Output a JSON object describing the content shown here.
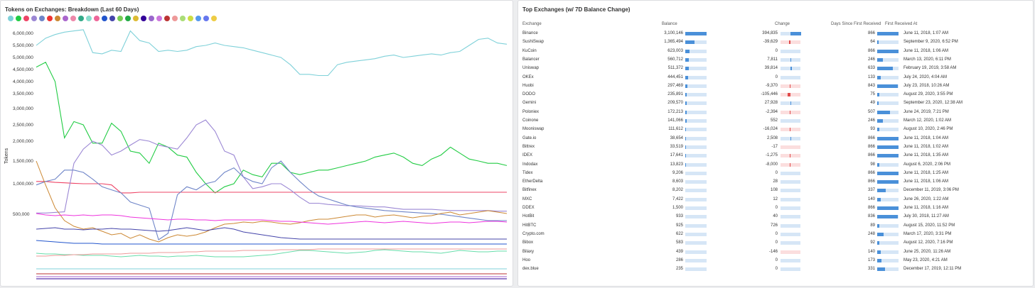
{
  "left_title": "Tokens on Exchanges: Breakdown (Last 60 Days)",
  "right_title": "Top Exchanges (w/ 7D Balance Change)",
  "legend_colors": [
    "#7fd1d9",
    "#22cc44",
    "#ee4466",
    "#9b87d4",
    "#6f85c8",
    "#ee3333",
    "#cc8833",
    "#aa66cc",
    "#ee88aa",
    "#33aa88",
    "#88ddcc",
    "#ee6699",
    "#2255cc",
    "#4444aa",
    "#77cc55",
    "#22aa44",
    "#ddbb33",
    "#330099",
    "#9966cc",
    "#cc77dd",
    "#bb3333",
    "#ee9999",
    "#aadd77",
    "#ccdd44",
    "#5599ee",
    "#6677ee",
    "#eecc44"
  ],
  "chart_data": {
    "type": "line",
    "ylabel": "Tokens",
    "yticks": [
      "6,000,000",
      "5,500,000",
      "5,000,000",
      "4,500,000",
      "4,000,000",
      "3,500,000",
      "3,000,000",
      "2,500,000",
      "2,000,000",
      "1,500,000",
      "1,000,000",
      "500,000"
    ],
    "series": [
      {
        "color": "#7fd1d9",
        "values": [
          5500000,
          5800000,
          5950000,
          6050000,
          6100000,
          6150000,
          5200000,
          5150000,
          5300000,
          5250000,
          6100000,
          5700000,
          5600000,
          5250000,
          5300000,
          5250000,
          5300000,
          5450000,
          5500000,
          5600000,
          5500000,
          5450000,
          5400000,
          5300000,
          5200000,
          5100000,
          5000000,
          4700000,
          4300000,
          4300000,
          4250000,
          4250000,
          4700000,
          4800000,
          4850000,
          4900000,
          4950000,
          5050000,
          5100000,
          5000000,
          5050000,
          5100000,
          5150000,
          5100000,
          5200000,
          5250000,
          5500000,
          5750000,
          5800000,
          5600000,
          5550000
        ]
      },
      {
        "color": "#22cc44",
        "values": [
          4600000,
          4800000,
          4000000,
          2100000,
          2600000,
          2500000,
          1950000,
          1950000,
          2550000,
          2300000,
          1750000,
          1700000,
          1450000,
          1950000,
          1850000,
          1650000,
          1600000,
          1250000,
          1000000,
          850000,
          950000,
          1000000,
          1300000,
          1200000,
          1150000,
          1450000,
          1450000,
          1250000,
          1200000,
          1250000,
          1300000,
          1300000,
          1350000,
          1400000,
          1450000,
          1500000,
          1600000,
          1650000,
          1700000,
          1600000,
          1450000,
          1400000,
          1550000,
          1650000,
          1850000,
          1700000,
          1550000,
          1500000,
          1450000,
          1450000,
          1400000
        ]
      },
      {
        "color": "#ee4466",
        "values": [
          1050000,
          1050000,
          1030000,
          1020000,
          1010000,
          1000000,
          1000000,
          1000000,
          980000,
          850000,
          850000,
          860000,
          860000,
          860000,
          860000,
          860000,
          860000,
          860000,
          860000,
          860000,
          860000,
          860000,
          860000,
          860000,
          860000,
          860000,
          860000,
          860000,
          860000,
          860000,
          860000,
          860000,
          860000,
          860000,
          860000,
          860000,
          860000,
          860000,
          860000,
          860000,
          860000,
          860000,
          860000,
          860000,
          860000,
          860000,
          860000,
          860000,
          860000,
          860000,
          860000
        ]
      },
      {
        "color": "#9b87d4",
        "values": [
          520000,
          520000,
          530000,
          540000,
          1450000,
          1800000,
          2000000,
          1900000,
          1650000,
          1750000,
          1900000,
          2050000,
          2000000,
          1900000,
          1850000,
          1800000,
          2100000,
          2500000,
          2650000,
          2300000,
          1750000,
          1650000,
          1150000,
          920000,
          950000,
          1000000,
          1000000,
          900000,
          780000,
          680000,
          680000,
          660000,
          650000,
          640000,
          640000,
          630000,
          620000,
          620000,
          600000,
          580000,
          580000,
          580000,
          580000,
          570000,
          560000,
          560000,
          560000,
          560000,
          560000,
          550000,
          550000
        ]
      },
      {
        "color": "#6f85c8",
        "values": [
          980000,
          1050000,
          1100000,
          1300000,
          1300000,
          1250000,
          1100000,
          950000,
          900000,
          850000,
          700000,
          650000,
          600000,
          300000,
          350000,
          820000,
          950000,
          900000,
          1000000,
          1050000,
          1250000,
          1350000,
          1150000,
          1050000,
          1000000,
          1350000,
          1500000,
          1250000,
          1050000,
          900000,
          800000,
          750000,
          700000,
          650000,
          620000,
          600000,
          580000,
          560000,
          550000,
          540000,
          530000,
          520000,
          510000,
          500000,
          490000,
          480000,
          470000,
          460000,
          450000,
          450000,
          450000
        ]
      }
    ]
  },
  "table": {
    "headers": {
      "exchange": "Exchange",
      "balance": "Balance",
      "change": "Change",
      "days": "Days Since First Received",
      "first": "First Received At"
    },
    "rows": [
      {
        "exchange": "Binance",
        "balance": "3,100,146",
        "balance_frac": 1.0,
        "change": "394,835",
        "change_frac": 0.55,
        "change_neg": false,
        "days": "866",
        "days_frac": 1.0,
        "first": "June 11, 2018, 1:07 AM"
      },
      {
        "exchange": "SushiSwap",
        "balance": "1,365,494",
        "balance_frac": 0.44,
        "change": "-39,629",
        "change_frac": 0.06,
        "change_neg": true,
        "days": "64",
        "days_frac": 0.07,
        "first": "September 9, 2020, 6:52 PM"
      },
      {
        "exchange": "KuCoin",
        "balance": "623,003",
        "balance_frac": 0.2,
        "change": "0",
        "change_frac": 0,
        "change_neg": false,
        "days": "866",
        "days_frac": 1.0,
        "first": "June 11, 2018, 1:06 AM"
      },
      {
        "exchange": "Balancer",
        "balance": "560,712",
        "balance_frac": 0.18,
        "change": "7,811",
        "change_frac": 0.01,
        "change_neg": false,
        "days": "246",
        "days_frac": 0.28,
        "first": "March 13, 2020, 6:11 PM"
      },
      {
        "exchange": "Uniswap",
        "balance": "511,372",
        "balance_frac": 0.16,
        "change": "39,814",
        "change_frac": 0.06,
        "change_neg": false,
        "days": "633",
        "days_frac": 0.73,
        "first": "February 19, 2019, 3:58 AM"
      },
      {
        "exchange": "OKEx",
        "balance": "444,451",
        "balance_frac": 0.14,
        "change": "0",
        "change_frac": 0,
        "change_neg": false,
        "days": "133",
        "days_frac": 0.15,
        "first": "July 24, 2020, 4:04 AM"
      },
      {
        "exchange": "Huobi",
        "balance": "297,469",
        "balance_frac": 0.1,
        "change": "-9,370",
        "change_frac": 0.02,
        "change_neg": true,
        "days": "843",
        "days_frac": 0.97,
        "first": "July 23, 2018, 10:26 AM"
      },
      {
        "exchange": "DODO",
        "balance": "235,891",
        "balance_frac": 0.08,
        "change": "-105,446",
        "change_frac": 0.15,
        "change_neg": true,
        "days": "75",
        "days_frac": 0.09,
        "first": "August 29, 2020, 3:55 PM"
      },
      {
        "exchange": "Gemini",
        "balance": "209,570",
        "balance_frac": 0.07,
        "change": "27,928",
        "change_frac": 0.04,
        "change_neg": false,
        "days": "49",
        "days_frac": 0.06,
        "first": "September 23, 2020, 12:38 AM"
      },
      {
        "exchange": "Poloniex",
        "balance": "172,213",
        "balance_frac": 0.06,
        "change": "-2,394",
        "change_frac": 0.01,
        "change_neg": true,
        "days": "507",
        "days_frac": 0.59,
        "first": "June 24, 2019, 7:21 PM"
      },
      {
        "exchange": "Coinone",
        "balance": "141,066",
        "balance_frac": 0.05,
        "change": "552",
        "change_frac": 0,
        "change_neg": false,
        "days": "246",
        "days_frac": 0.28,
        "first": "March 12, 2020, 1:02 AM"
      },
      {
        "exchange": "Mooniswap",
        "balance": "111,612",
        "balance_frac": 0.04,
        "change": "-16,024",
        "change_frac": 0.03,
        "change_neg": true,
        "days": "93",
        "days_frac": 0.11,
        "first": "August 10, 2020, 2:46 PM"
      },
      {
        "exchange": "Gate.io",
        "balance": "38,654",
        "balance_frac": 0.01,
        "change": "2,508",
        "change_frac": 0.01,
        "change_neg": false,
        "days": "866",
        "days_frac": 1.0,
        "first": "June 11, 2018, 1:04 AM"
      },
      {
        "exchange": "Bittrex",
        "balance": "33,519",
        "balance_frac": 0.01,
        "change": "-17",
        "change_frac": 0,
        "change_neg": true,
        "days": "866",
        "days_frac": 1.0,
        "first": "June 11, 2018, 1:02 AM"
      },
      {
        "exchange": "IDEX",
        "balance": "17,641",
        "balance_frac": 0.01,
        "change": "-1,275",
        "change_frac": 0.01,
        "change_neg": true,
        "days": "866",
        "days_frac": 1.0,
        "first": "June 11, 2018, 1:35 AM"
      },
      {
        "exchange": "Indodax",
        "balance": "13,823",
        "balance_frac": 0.01,
        "change": "-8,000",
        "change_frac": 0.02,
        "change_neg": true,
        "days": "98",
        "days_frac": 0.11,
        "first": "August 6, 2020, 2:06 PM"
      },
      {
        "exchange": "Tidex",
        "balance": "9,206",
        "balance_frac": 0,
        "change": "0",
        "change_frac": 0,
        "change_neg": false,
        "days": "866",
        "days_frac": 1.0,
        "first": "June 11, 2018, 1:25 AM"
      },
      {
        "exchange": "EtherDelta",
        "balance": "8,603",
        "balance_frac": 0,
        "change": "28",
        "change_frac": 0,
        "change_neg": false,
        "days": "866",
        "days_frac": 1.0,
        "first": "June 11, 2018, 1:06 AM"
      },
      {
        "exchange": "Bitfinex",
        "balance": "8,202",
        "balance_frac": 0,
        "change": "108",
        "change_frac": 0,
        "change_neg": false,
        "days": "337",
        "days_frac": 0.39,
        "first": "December 11, 2019, 3:06 PM"
      },
      {
        "exchange": "MXC",
        "balance": "7,422",
        "balance_frac": 0,
        "change": "12",
        "change_frac": 0,
        "change_neg": false,
        "days": "140",
        "days_frac": 0.16,
        "first": "June 26, 2020, 1:22 AM"
      },
      {
        "exchange": "DDEX",
        "balance": "1,500",
        "balance_frac": 0,
        "change": "0",
        "change_frac": 0,
        "change_neg": false,
        "days": "866",
        "days_frac": 1.0,
        "first": "June 11, 2018, 1:16 AM"
      },
      {
        "exchange": "HotBit",
        "balance": "933",
        "balance_frac": 0,
        "change": "40",
        "change_frac": 0,
        "change_neg": false,
        "days": "836",
        "days_frac": 0.97,
        "first": "July 30, 2018, 11:27 AM"
      },
      {
        "exchange": "HitBTC",
        "balance": "925",
        "balance_frac": 0,
        "change": "726",
        "change_frac": 0,
        "change_neg": false,
        "days": "89",
        "days_frac": 0.1,
        "first": "August 15, 2020, 11:52 PM"
      },
      {
        "exchange": "Crypto.com",
        "balance": "622",
        "balance_frac": 0,
        "change": "0",
        "change_frac": 0,
        "change_neg": false,
        "days": "248",
        "days_frac": 0.29,
        "first": "March 17, 2020, 3:31 PM"
      },
      {
        "exchange": "Bibox",
        "balance": "583",
        "balance_frac": 0,
        "change": "0",
        "change_frac": 0,
        "change_neg": false,
        "days": "92",
        "days_frac": 0.11,
        "first": "August 12, 2020, 7:16 PM"
      },
      {
        "exchange": "Bilaxy",
        "balance": "439",
        "balance_frac": 0,
        "change": "-146",
        "change_frac": 0,
        "change_neg": true,
        "days": "140",
        "days_frac": 0.16,
        "first": "June 25, 2020, 11:26 AM"
      },
      {
        "exchange": "Hoo",
        "balance": "286",
        "balance_frac": 0,
        "change": "0",
        "change_frac": 0,
        "change_neg": false,
        "days": "173",
        "days_frac": 0.2,
        "first": "May 23, 2020, 4:21 AM"
      },
      {
        "exchange": "dex.blue",
        "balance": "235",
        "balance_frac": 0,
        "change": "0",
        "change_frac": 0,
        "change_neg": false,
        "days": "331",
        "days_frac": 0.38,
        "first": "December 17, 2019, 12:11 PM"
      }
    ]
  }
}
